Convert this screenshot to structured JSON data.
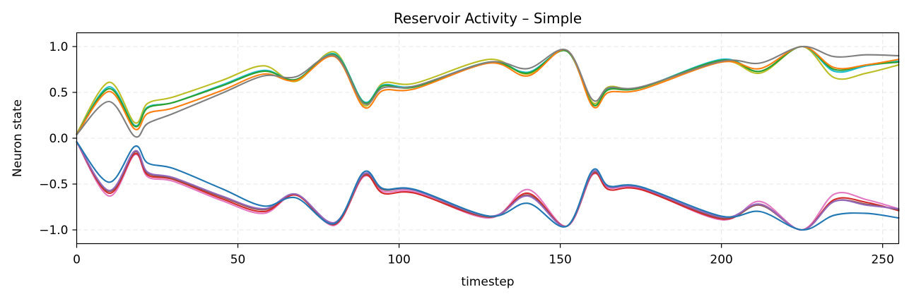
{
  "chart_data": {
    "type": "line",
    "title": "Reservoir Activity – Simple",
    "xlabel": "timestep",
    "ylabel": "Neuron state",
    "xlim": [
      0,
      255
    ],
    "ylim": [
      -1.15,
      1.15
    ],
    "grid": true,
    "x_ticks": [
      {
        "value": 0,
        "label": "0"
      },
      {
        "value": 50,
        "label": "50"
      },
      {
        "value": 100,
        "label": "100"
      },
      {
        "value": 150,
        "label": "150"
      },
      {
        "value": 200,
        "label": "200"
      },
      {
        "value": 250,
        "label": "250"
      }
    ],
    "y_ticks": [
      {
        "value": 1.0,
        "label": "1.0"
      },
      {
        "value": 0.5,
        "label": "0.5"
      },
      {
        "value": 0.0,
        "label": "0.0"
      },
      {
        "value": -0.5,
        "label": "−0.5"
      },
      {
        "value": -1.0,
        "label": "−1.0"
      }
    ],
    "x": [
      0,
      10,
      18,
      22,
      30,
      45,
      58,
      68,
      80,
      89,
      95,
      105,
      128,
      140,
      152,
      160,
      165,
      175,
      200,
      212,
      225,
      235,
      245,
      255
    ],
    "series": [
      {
        "color": "#bcbd22",
        "values": [
          0.05,
          0.61,
          0.17,
          0.38,
          0.45,
          0.63,
          0.79,
          0.62,
          0.94,
          0.36,
          0.6,
          0.6,
          0.86,
          0.7,
          0.96,
          0.39,
          0.56,
          0.55,
          0.84,
          0.71,
          1.0,
          0.66,
          0.71,
          0.8
        ]
      },
      {
        "color": "#17becf",
        "values": [
          0.04,
          0.56,
          0.14,
          0.34,
          0.39,
          0.58,
          0.74,
          0.64,
          0.92,
          0.4,
          0.58,
          0.57,
          0.83,
          0.72,
          0.95,
          0.37,
          0.54,
          0.55,
          0.86,
          0.73,
          1.0,
          0.73,
          0.79,
          0.84
        ]
      },
      {
        "color": "#2ca02c",
        "values": [
          0.04,
          0.54,
          0.13,
          0.33,
          0.39,
          0.57,
          0.73,
          0.64,
          0.91,
          0.39,
          0.57,
          0.56,
          0.83,
          0.71,
          0.95,
          0.37,
          0.53,
          0.55,
          0.85,
          0.73,
          1.0,
          0.75,
          0.8,
          0.83
        ]
      },
      {
        "color": "#ff7f0e",
        "values": [
          0.04,
          0.51,
          0.1,
          0.27,
          0.33,
          0.52,
          0.7,
          0.63,
          0.89,
          0.34,
          0.52,
          0.54,
          0.82,
          0.68,
          0.96,
          0.35,
          0.5,
          0.53,
          0.83,
          0.76,
          1.0,
          0.77,
          0.8,
          0.86
        ]
      },
      {
        "color": "#7f7f7f",
        "values": [
          0.04,
          0.4,
          0.02,
          0.16,
          0.27,
          0.49,
          0.68,
          0.67,
          0.9,
          0.38,
          0.55,
          0.57,
          0.83,
          0.76,
          0.96,
          0.42,
          0.55,
          0.56,
          0.84,
          0.82,
          1.0,
          0.89,
          0.91,
          0.9
        ]
      },
      {
        "color": "#e377c2",
        "values": [
          -0.04,
          -0.63,
          -0.18,
          -0.42,
          -0.47,
          -0.68,
          -0.82,
          -0.62,
          -0.95,
          -0.42,
          -0.58,
          -0.59,
          -0.87,
          -0.56,
          -0.96,
          -0.4,
          -0.54,
          -0.55,
          -0.89,
          -0.69,
          -1.0,
          -0.61,
          -0.67,
          -0.77
        ]
      },
      {
        "color": "#d62728",
        "values": [
          -0.04,
          -0.6,
          -0.17,
          -0.4,
          -0.45,
          -0.66,
          -0.8,
          -0.62,
          -0.94,
          -0.41,
          -0.6,
          -0.6,
          -0.86,
          -0.6,
          -0.96,
          -0.39,
          -0.56,
          -0.56,
          -0.88,
          -0.72,
          -1.0,
          -0.67,
          -0.7,
          -0.79
        ]
      },
      {
        "color": "#8c564b",
        "values": [
          -0.04,
          -0.58,
          -0.15,
          -0.38,
          -0.44,
          -0.64,
          -0.78,
          -0.61,
          -0.93,
          -0.4,
          -0.56,
          -0.57,
          -0.86,
          -0.62,
          -0.96,
          -0.38,
          -0.53,
          -0.54,
          -0.87,
          -0.73,
          -1.0,
          -0.69,
          -0.72,
          -0.78
        ]
      },
      {
        "color": "#9467bd",
        "values": [
          -0.04,
          -0.57,
          -0.14,
          -0.37,
          -0.43,
          -0.63,
          -0.77,
          -0.61,
          -0.92,
          -0.39,
          -0.55,
          -0.57,
          -0.85,
          -0.63,
          -0.96,
          -0.37,
          -0.53,
          -0.54,
          -0.86,
          -0.72,
          -1.0,
          -0.69,
          -0.73,
          -0.77
        ]
      },
      {
        "color": "#1f77b4",
        "values": [
          -0.04,
          -0.48,
          -0.09,
          -0.27,
          -0.33,
          -0.55,
          -0.74,
          -0.65,
          -0.93,
          -0.37,
          -0.55,
          -0.56,
          -0.85,
          -0.71,
          -0.96,
          -0.35,
          -0.52,
          -0.53,
          -0.85,
          -0.8,
          -1.0,
          -0.84,
          -0.82,
          -0.87
        ]
      }
    ]
  }
}
